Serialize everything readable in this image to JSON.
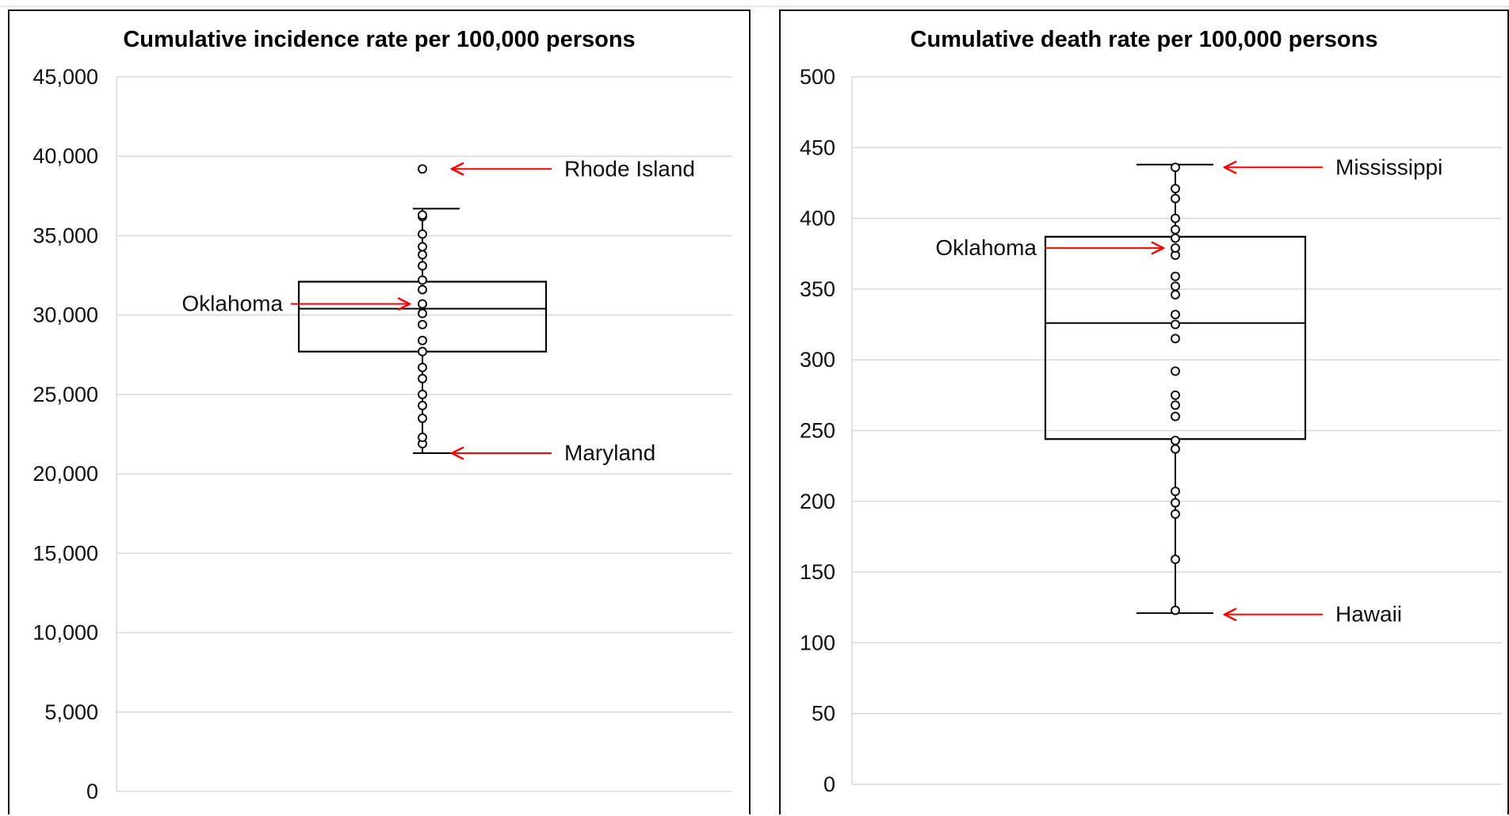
{
  "chart_data": [
    {
      "type": "box",
      "title": "Cumulative incidence rate per 100,000 persons",
      "ylim": [
        0,
        45000
      ],
      "yticks": [
        0,
        5000,
        10000,
        15000,
        20000,
        25000,
        30000,
        35000,
        40000,
        45000
      ],
      "ytick_labels": [
        "0",
        "5,000",
        "10,000",
        "15,000",
        "20,000",
        "25,000",
        "30,000",
        "35,000",
        "40,000",
        "45,000"
      ],
      "grid": true,
      "box": {
        "whisker_low": 21300,
        "q1": 27700,
        "median": 30400,
        "q3": 32100,
        "whisker_high": 36700
      },
      "points": [
        21900,
        22300,
        23500,
        24300,
        25000,
        26000,
        26700,
        27700,
        28400,
        29400,
        30100,
        30700,
        31600,
        32200,
        33100,
        33800,
        34300,
        35100,
        36200,
        36300
      ],
      "outliers": [
        39200
      ],
      "annotations": [
        {
          "label": "Rhode Island",
          "value": 39200,
          "side": "right"
        },
        {
          "label": "Oklahoma",
          "value": 30700,
          "side": "left"
        },
        {
          "label": "Maryland",
          "value": 21300,
          "side": "right"
        }
      ]
    },
    {
      "type": "box",
      "title": "Cumulative death rate per 100,000 persons",
      "ylim": [
        0,
        500
      ],
      "yticks": [
        0,
        50,
        100,
        150,
        200,
        250,
        300,
        350,
        400,
        450,
        500
      ],
      "ytick_labels": [
        "0",
        "50",
        "100",
        "150",
        "200",
        "250",
        "300",
        "350",
        "400",
        "450",
        "500"
      ],
      "grid": true,
      "box": {
        "whisker_low": 121,
        "q1": 244,
        "median": 326,
        "q3": 387,
        "whisker_high": 438
      },
      "points": [
        123,
        159,
        191,
        199,
        207,
        237,
        243,
        260,
        268,
        275,
        292,
        315,
        325,
        332,
        346,
        352,
        359,
        374,
        379,
        386,
        392,
        400,
        414,
        421,
        436
      ],
      "outliers": [],
      "annotations": [
        {
          "label": "Mississippi",
          "value": 436,
          "side": "right"
        },
        {
          "label": "Oklahoma",
          "value": 379,
          "side": "left"
        },
        {
          "label": "Hawaii",
          "value": 120,
          "side": "right"
        }
      ]
    }
  ],
  "colors": {
    "annotation_arrow": "#ff0000",
    "gridline": "#d9d9d9",
    "box_line": "#000000"
  }
}
